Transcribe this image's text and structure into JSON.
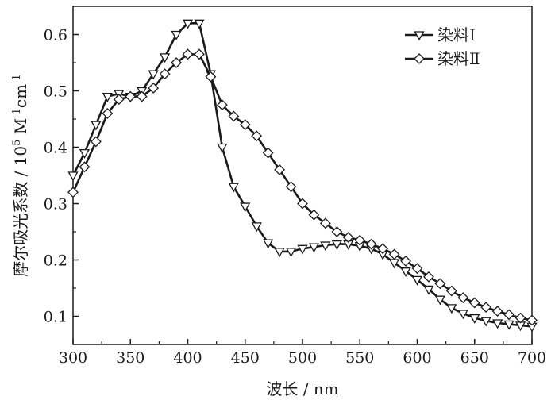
{
  "chart_data": {
    "type": "line",
    "xlabel": "波长 / nm",
    "ylabel": {
      "prefix": "摩尔吸光系数 / 10",
      "prefix_sup": "5",
      "unit1": " M",
      "unit1_sup": "-1",
      "unit2": "cm",
      "unit2_sup": "-1"
    },
    "xlim": [
      300,
      700
    ],
    "ylim": [
      0.05,
      0.65
    ],
    "xticks": [
      "300",
      "350",
      "400",
      "450",
      "500",
      "550",
      "600",
      "650",
      "700"
    ],
    "yticks": [
      "0.1",
      "0.2",
      "0.3",
      "0.4",
      "0.5",
      "0.6"
    ],
    "grid": false,
    "legend_position": "top-right",
    "line_color": "#1a1a1a",
    "series": [
      {
        "name": "染料Ⅰ",
        "marker": "triangle-down",
        "x": [
          300,
          310,
          320,
          330,
          340,
          350,
          360,
          370,
          380,
          390,
          400,
          410,
          420,
          430,
          440,
          450,
          460,
          470,
          480,
          490,
          500,
          510,
          520,
          530,
          540,
          550,
          560,
          570,
          580,
          590,
          600,
          610,
          620,
          630,
          640,
          650,
          660,
          670,
          680,
          690,
          700
        ],
        "y": [
          0.35,
          0.39,
          0.44,
          0.49,
          0.495,
          0.49,
          0.5,
          0.53,
          0.56,
          0.6,
          0.62,
          0.62,
          0.53,
          0.4,
          0.33,
          0.295,
          0.26,
          0.23,
          0.215,
          0.215,
          0.22,
          0.223,
          0.226,
          0.228,
          0.228,
          0.225,
          0.22,
          0.21,
          0.195,
          0.18,
          0.165,
          0.148,
          0.13,
          0.115,
          0.105,
          0.097,
          0.092,
          0.088,
          0.086,
          0.084,
          0.082
        ]
      },
      {
        "name": "染料Ⅱ",
        "marker": "diamond",
        "x": [
          300,
          310,
          320,
          330,
          340,
          350,
          360,
          370,
          380,
          390,
          400,
          410,
          420,
          430,
          440,
          450,
          460,
          470,
          480,
          490,
          500,
          510,
          520,
          530,
          540,
          550,
          560,
          570,
          580,
          590,
          600,
          610,
          620,
          630,
          640,
          650,
          660,
          670,
          680,
          690,
          700
        ],
        "y": [
          0.32,
          0.365,
          0.41,
          0.46,
          0.485,
          0.49,
          0.49,
          0.505,
          0.53,
          0.55,
          0.565,
          0.565,
          0.525,
          0.475,
          0.455,
          0.44,
          0.42,
          0.39,
          0.36,
          0.33,
          0.3,
          0.28,
          0.265,
          0.25,
          0.24,
          0.235,
          0.228,
          0.22,
          0.21,
          0.198,
          0.185,
          0.17,
          0.158,
          0.145,
          0.133,
          0.124,
          0.116,
          0.109,
          0.103,
          0.097,
          0.093
        ]
      }
    ]
  }
}
